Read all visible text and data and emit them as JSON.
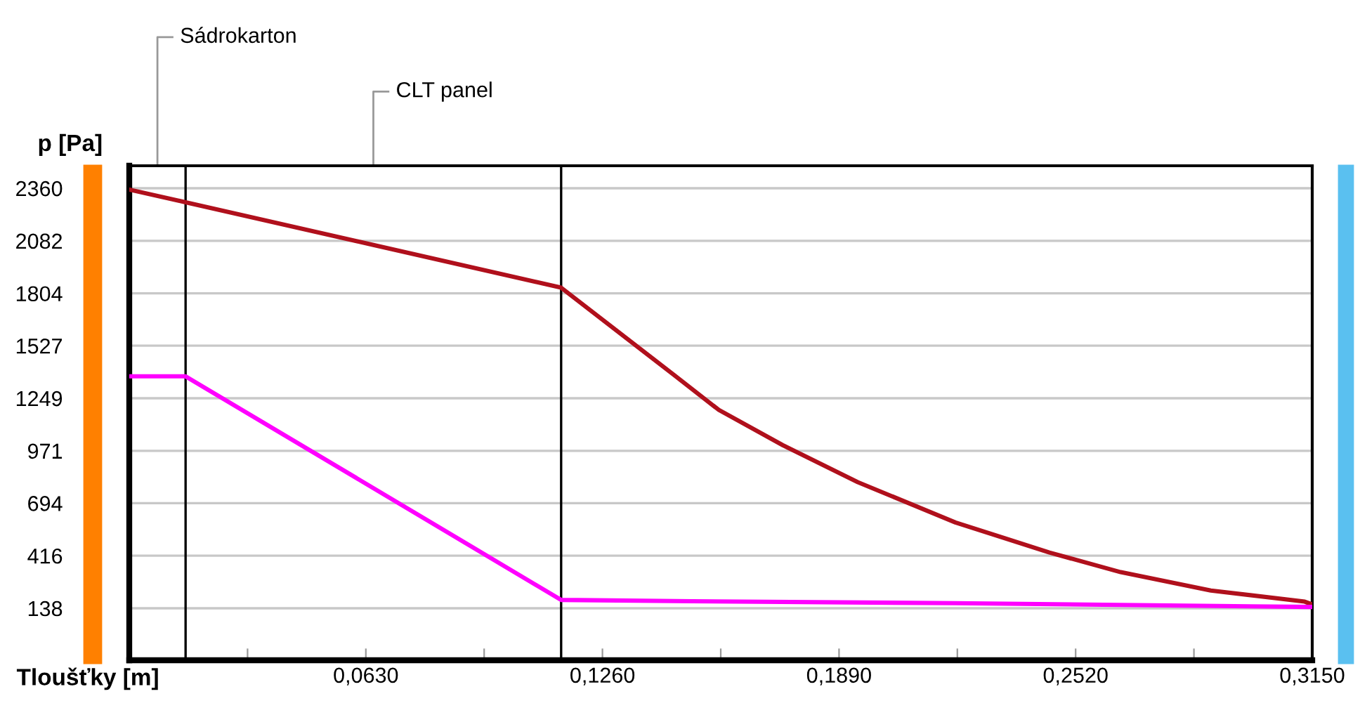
{
  "chart_data": {
    "type": "line",
    "xlabel": "Tloušťky [m]",
    "ylabel": "p [Pa]",
    "annotations": [
      "Sádrokarton",
      "CLT panel"
    ],
    "xlim": [
      0,
      0.315
    ],
    "ylim": [
      -137,
      2479
    ],
    "xticks": [
      {
        "value": 0.0315,
        "label": null
      },
      {
        "value": 0.063,
        "label": "0,0630"
      },
      {
        "value": 0.0945,
        "label": null
      },
      {
        "value": 0.126,
        "label": "0,1260"
      },
      {
        "value": 0.1575,
        "label": null
      },
      {
        "value": 0.189,
        "label": "0,1890"
      },
      {
        "value": 0.2205,
        "label": null
      },
      {
        "value": 0.252,
        "label": "0,2520"
      },
      {
        "value": 0.2835,
        "label": null
      },
      {
        "value": 0.315,
        "label": "0,3150"
      }
    ],
    "yticks": [
      138,
      416,
      694,
      971,
      1249,
      1527,
      1804,
      2082,
      2360
    ],
    "grid": "y",
    "ref_lines": [
      {
        "axis": "x",
        "value": 0.015,
        "color": "#000000"
      },
      {
        "axis": "x",
        "value": 0.115,
        "color": "#000000"
      }
    ],
    "series": [
      {
        "color": "#b0101c",
        "x": [
          0,
          0.015,
          0.065,
          0.115,
          0.145,
          0.157,
          0.174,
          0.194,
          0.22,
          0.245,
          0.264,
          0.288,
          0.313,
          0.315
        ],
        "values": [
          2353,
          2286,
          2060,
          1834,
          1373,
          1187,
          1001,
          805,
          592,
          433,
          329,
          232,
          173,
          158
        ]
      },
      {
        "color": "#ff00ff",
        "x": [
          0,
          0.015,
          0.115,
          0.15,
          0.22,
          0.29,
          0.315
        ],
        "values": [
          1365,
          1365,
          182,
          175,
          165,
          150,
          145
        ]
      }
    ]
  }
}
